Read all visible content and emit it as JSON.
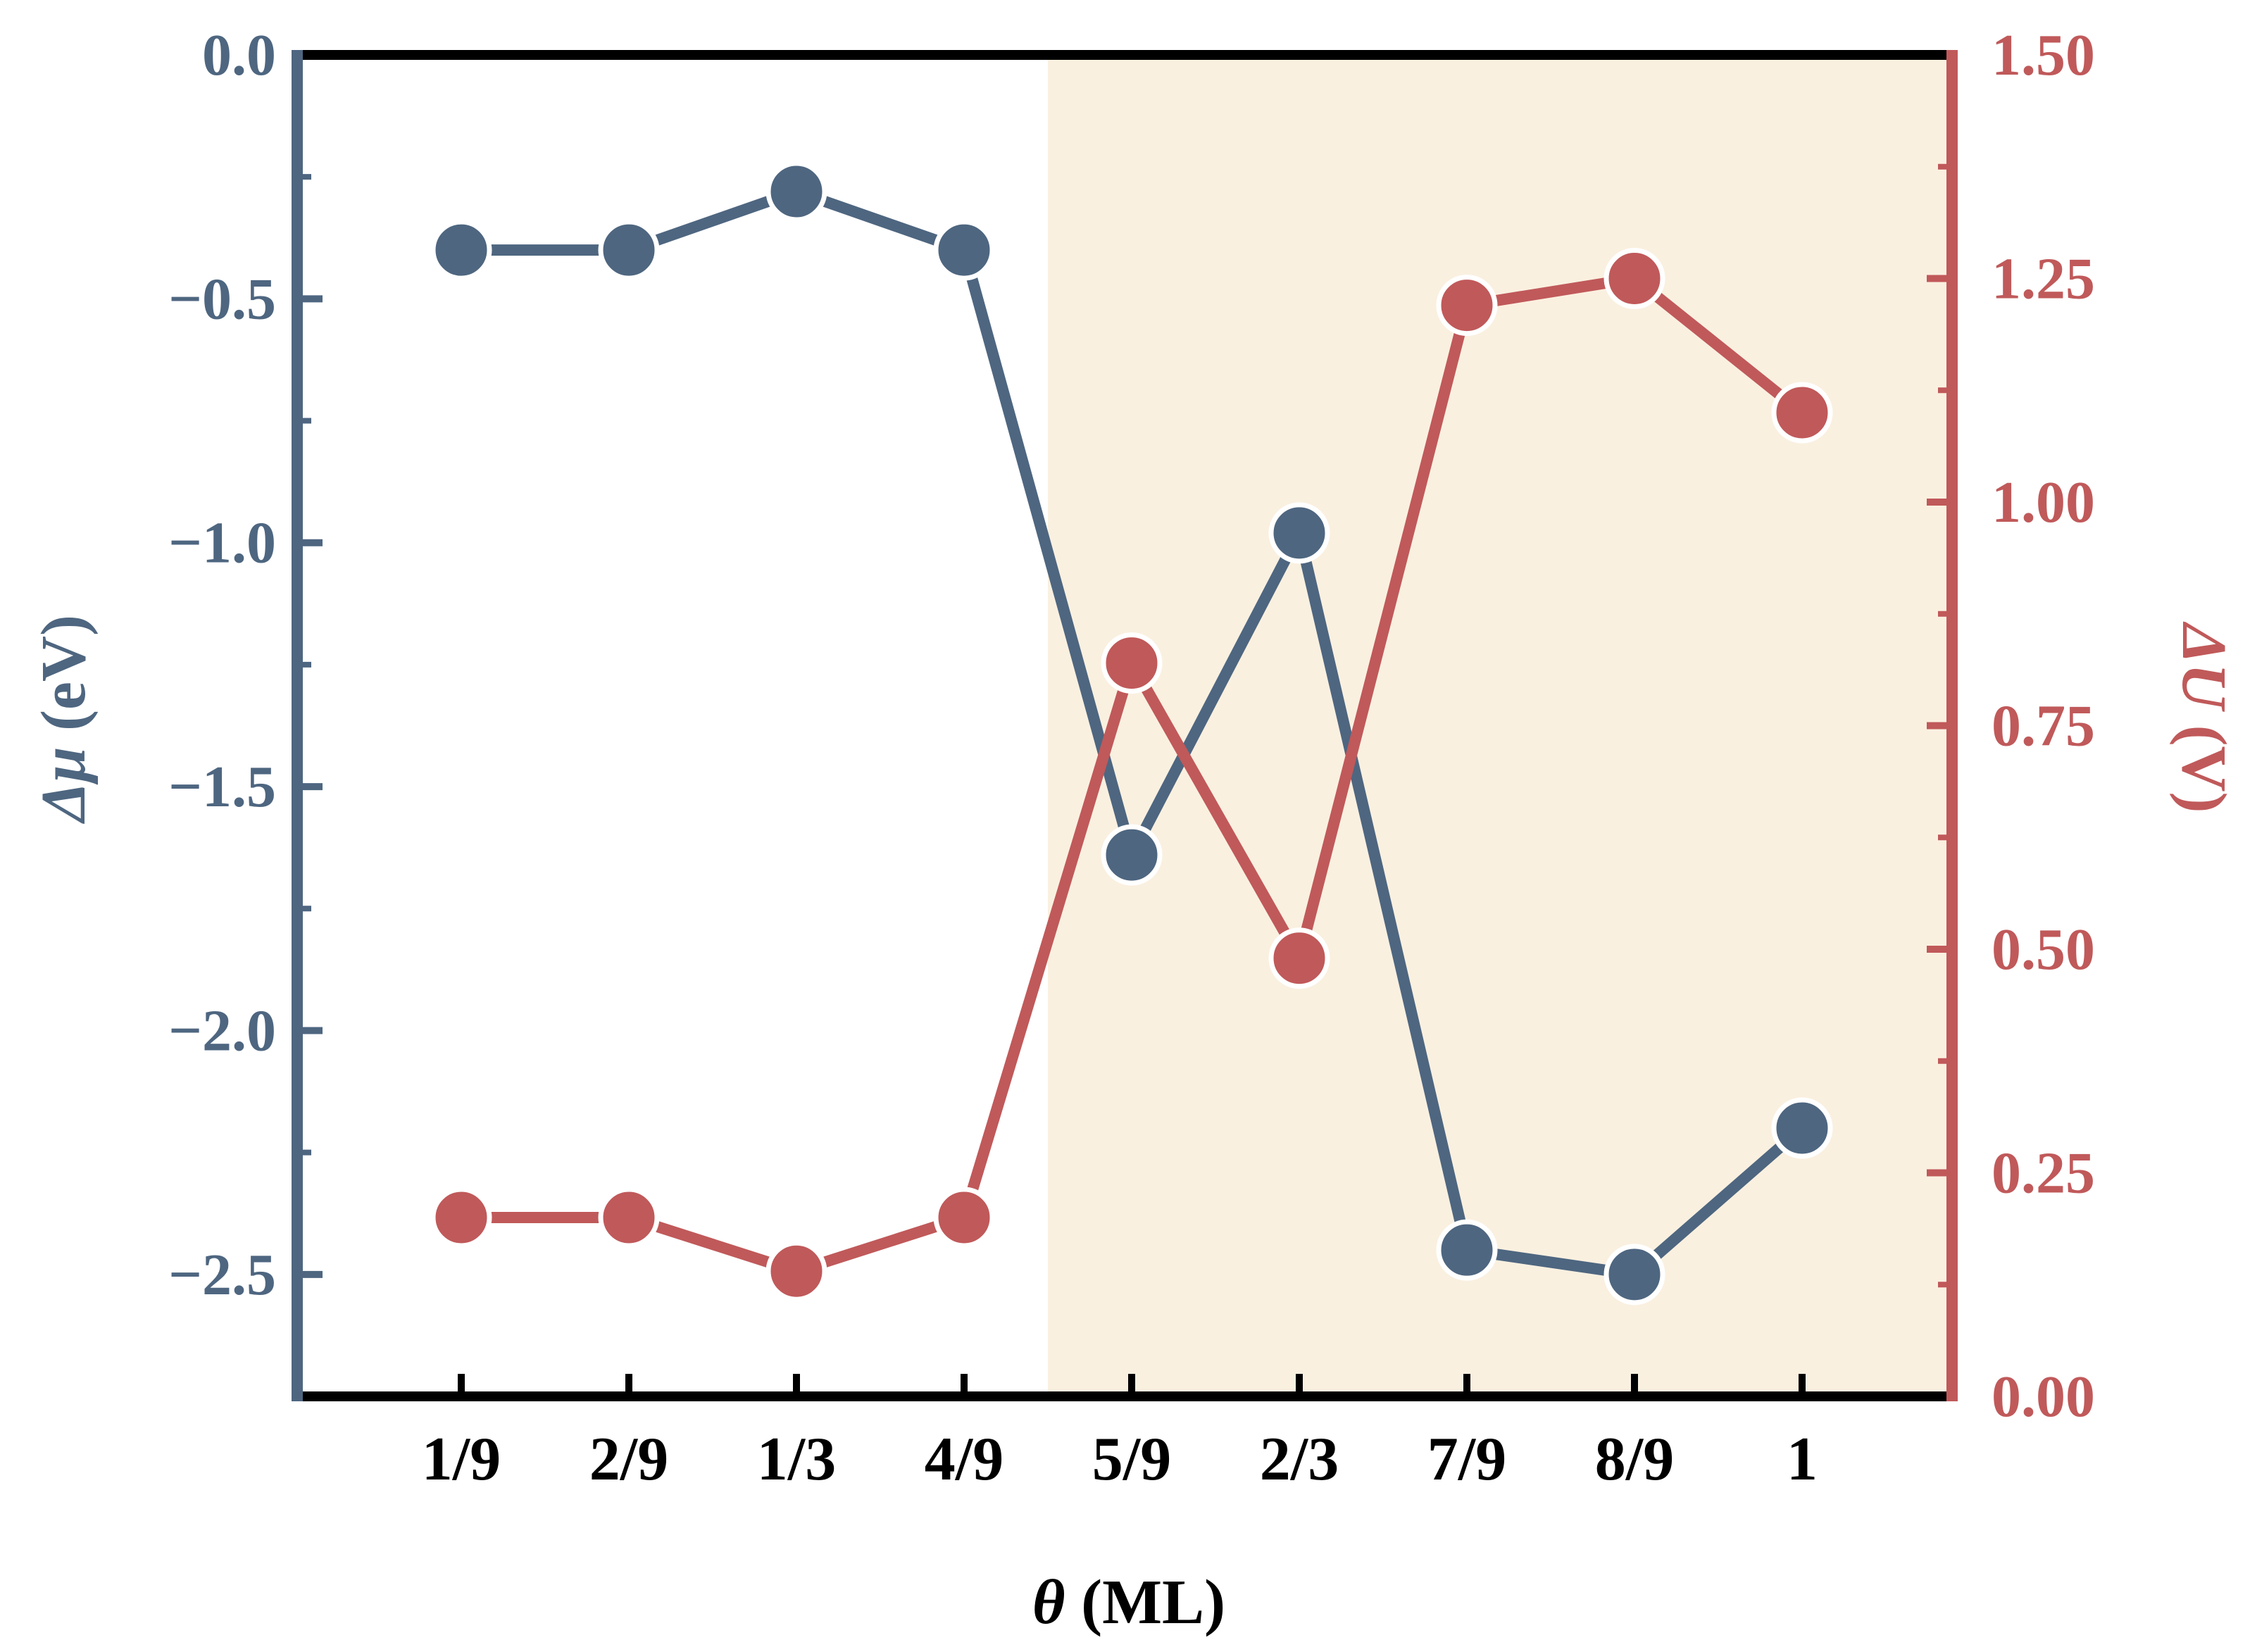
{
  "chart_data": {
    "type": "line",
    "categories": [
      "1/9",
      "2/9",
      "1/3",
      "4/9",
      "5/9",
      "2/3",
      "7/9",
      "8/9",
      "1"
    ],
    "xlabel": {
      "symbol": "θ",
      "rest": " (ML)"
    },
    "shaded_region": {
      "from_between": [
        "4/9",
        "5/9"
      ],
      "to": "end",
      "color": "#faf0e0"
    },
    "y_left": {
      "label": {
        "symbol": "Δμ",
        "rest": " (eV)"
      },
      "ylim": [
        -2.75,
        0.0
      ],
      "ticks": [
        0.0,
        -0.5,
        -1.0,
        -1.5,
        -2.0,
        -2.5
      ],
      "tick_labels": [
        "0.0",
        "−0.5",
        "−1.0",
        "−1.5",
        "−2.0",
        "−2.5"
      ],
      "color": "#4e6680"
    },
    "y_right": {
      "label": {
        "symbol": "ΔU",
        "rest": " (V)"
      },
      "ylim": [
        0.0,
        1.5
      ],
      "ticks": [
        0.0,
        0.25,
        0.5,
        0.75,
        1.0,
        1.25,
        1.5
      ],
      "tick_labels": [
        "0.00",
        "0.25",
        "0.50",
        "0.75",
        "1.00",
        "1.25",
        "1.50"
      ],
      "color": "#c0595a"
    },
    "series": [
      {
        "axis": "left",
        "color": "#4e6680",
        "values": [
          -0.4,
          -0.4,
          -0.28,
          -0.4,
          -1.64,
          -0.98,
          -2.45,
          -2.5,
          -2.2
        ]
      },
      {
        "axis": "right",
        "color": "#c0595a",
        "values": [
          0.2,
          0.2,
          0.14,
          0.2,
          0.82,
          0.49,
          1.22,
          1.25,
          1.1
        ]
      }
    ]
  }
}
